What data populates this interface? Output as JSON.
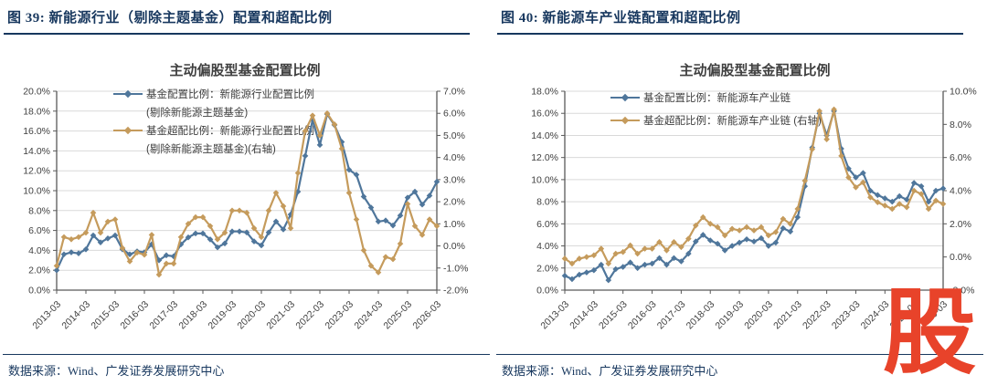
{
  "watermark": "股",
  "colors": {
    "heading_navy": "#17375E",
    "series_blue": "#4F769B",
    "series_gold": "#C59B5C",
    "gridline": "#D9D9D9",
    "axis_line": "#595959",
    "watermark_red": "#E8432A"
  },
  "figures": [
    {
      "header": "图 39:  新能源行业（剔除主题基金）配置和超配比例",
      "source": "数据来源：Wind、广发证券发展研究中心"
    },
    {
      "header": "图 40:  新能源车产业链配置和超配比例",
      "source": "数据来源：Wind、广发证券发展研究中心"
    }
  ],
  "chart_data": [
    {
      "type": "line",
      "title": "主动偏股型基金配置比例",
      "legend_position": "top-left-inside",
      "grid": true,
      "x": [
        "2013-03",
        "2013-06",
        "2013-09",
        "2013-12",
        "2014-03",
        "2014-06",
        "2014-09",
        "2014-12",
        "2015-03",
        "2015-06",
        "2015-09",
        "2015-12",
        "2016-03",
        "2016-06",
        "2016-09",
        "2016-12",
        "2017-03",
        "2017-06",
        "2017-09",
        "2017-12",
        "2018-03",
        "2018-06",
        "2018-09",
        "2018-12",
        "2019-03",
        "2019-06",
        "2019-09",
        "2019-12",
        "2020-03",
        "2020-06",
        "2020-09",
        "2020-12",
        "2021-03",
        "2021-06",
        "2021-09",
        "2021-12",
        "2022-03",
        "2022-06",
        "2022-09",
        "2022-12",
        "2023-03",
        "2023-06",
        "2023-09",
        "2023-12",
        "2024-03",
        "2024-06",
        "2024-09",
        "2024-12",
        "2025-03",
        "2025-06",
        "2025-09",
        "2025-12",
        "2026-03"
      ],
      "x_tick_every": 4,
      "left_axis": {
        "min": 0,
        "max": 20,
        "step": 2,
        "unit": "%"
      },
      "right_axis": {
        "min": -2,
        "max": 7,
        "step": 1,
        "unit": "%"
      },
      "series": [
        {
          "name": "基金配置比例：新能源行业配置比例(剔除新能源主题基金)",
          "label_lines": [
            "基金配置比例：新能源行业配置比例",
            "(剔除新能源主题基金)"
          ],
          "axis": "left",
          "color": "#4F769B",
          "values": [
            2.0,
            3.6,
            3.8,
            3.7,
            4.1,
            5.5,
            4.8,
            5.2,
            5.5,
            4.1,
            3.6,
            3.9,
            3.8,
            4.6,
            3.0,
            3.5,
            3.4,
            4.6,
            5.3,
            5.7,
            5.7,
            5.1,
            4.3,
            4.7,
            5.9,
            5.9,
            5.8,
            4.9,
            4.5,
            5.8,
            6.9,
            6.1,
            7.6,
            9.9,
            13.5,
            17.1,
            14.6,
            17.7,
            16.6,
            14.9,
            12.1,
            11.6,
            9.4,
            8.3,
            6.9,
            7.0,
            6.5,
            7.5,
            9.3,
            9.9,
            8.6,
            9.5,
            10.9
          ]
        },
        {
          "name": "基金超配比例：新能源行业配置比例(剔除新能源主题基金)(右轴)",
          "label_lines": [
            "基金超配比例：新能源行业配置比例",
            "(剔除新能源主题基金)(右轴)"
          ],
          "axis": "right",
          "color": "#C59B5C",
          "values": [
            -0.9,
            0.4,
            0.3,
            0.4,
            0.6,
            1.5,
            0.6,
            1.1,
            1.2,
            -0.1,
            -0.7,
            -0.3,
            -0.4,
            0.5,
            -1.3,
            -0.8,
            -0.8,
            0.4,
            1.0,
            1.3,
            1.3,
            0.9,
            0.3,
            0.6,
            1.6,
            1.6,
            1.5,
            0.8,
            0.4,
            1.6,
            2.4,
            1.8,
            0.8,
            3.3,
            5.2,
            5.9,
            5.0,
            6.0,
            5.5,
            4.4,
            2.4,
            1.2,
            -0.2,
            -0.9,
            -1.2,
            -0.5,
            -0.6,
            0.1,
            1.9,
            0.9,
            0.5,
            1.2,
            0.9
          ]
        }
      ]
    },
    {
      "type": "line",
      "title": "主动偏股型基金配置比例",
      "legend_position": "top-left-inside",
      "grid": true,
      "x": [
        "2013-03",
        "2013-06",
        "2013-09",
        "2013-12",
        "2014-03",
        "2014-06",
        "2014-09",
        "2014-12",
        "2015-03",
        "2015-06",
        "2015-09",
        "2015-12",
        "2016-03",
        "2016-06",
        "2016-09",
        "2016-12",
        "2017-03",
        "2017-06",
        "2017-09",
        "2017-12",
        "2018-03",
        "2018-06",
        "2018-09",
        "2018-12",
        "2019-03",
        "2019-06",
        "2019-09",
        "2019-12",
        "2020-03",
        "2020-06",
        "2020-09",
        "2020-12",
        "2021-03",
        "2021-06",
        "2021-09",
        "2021-12",
        "2022-03",
        "2022-06",
        "2022-09",
        "2022-12",
        "2023-03",
        "2023-06",
        "2023-09",
        "2023-12",
        "2024-03",
        "2024-06",
        "2024-09",
        "2024-12",
        "2025-03",
        "2025-06",
        "2025-09",
        "2025-12",
        "2026-03"
      ],
      "x_tick_every": 4,
      "left_axis": {
        "min": 0,
        "max": 18,
        "step": 2,
        "unit": "%"
      },
      "right_axis": {
        "min": -2,
        "max": 10,
        "step": 2,
        "unit": "%"
      },
      "series": [
        {
          "name": "基金配置比例：新能源车产业链",
          "label_lines": [
            "基金配置比例：新能源车产业链"
          ],
          "axis": "left",
          "color": "#4F769B",
          "values": [
            1.3,
            1.0,
            1.4,
            1.6,
            1.8,
            2.3,
            0.9,
            1.9,
            2.1,
            2.5,
            2.0,
            2.3,
            2.4,
            2.9,
            2.3,
            2.9,
            2.6,
            3.3,
            4.4,
            5.0,
            4.5,
            4.2,
            3.6,
            4.0,
            4.3,
            4.6,
            4.4,
            4.7,
            4.0,
            4.3,
            5.6,
            5.3,
            6.6,
            9.4,
            12.9,
            16.0,
            14.0,
            16.2,
            12.8,
            11.0,
            10.2,
            10.6,
            9.0,
            8.6,
            8.3,
            8.0,
            8.5,
            8.2,
            9.7,
            9.4,
            8.0,
            9.0,
            9.2
          ]
        },
        {
          "name": "基金超配比例：新能源车产业链 (右轴)",
          "label_lines": [
            "基金超配比例：新能源车产业链 (右轴)"
          ],
          "axis": "right",
          "color": "#C59B5C",
          "values": [
            -0.1,
            -0.4,
            -0.1,
            0.0,
            0.1,
            0.5,
            -0.4,
            0.2,
            0.3,
            0.7,
            0.2,
            0.5,
            0.5,
            0.9,
            0.4,
            0.9,
            0.6,
            1.1,
            1.9,
            2.4,
            2.0,
            1.8,
            1.3,
            1.7,
            1.6,
            1.8,
            1.6,
            1.8,
            1.3,
            1.5,
            2.3,
            2.0,
            2.9,
            4.6,
            6.5,
            8.8,
            7.1,
            8.9,
            6.1,
            4.8,
            4.2,
            4.5,
            3.6,
            3.3,
            3.1,
            2.9,
            3.2,
            3.0,
            4.0,
            3.8,
            2.9,
            3.4,
            3.2
          ]
        }
      ]
    }
  ]
}
